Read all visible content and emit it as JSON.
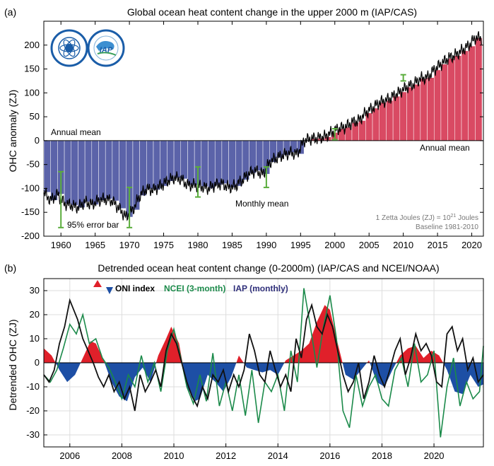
{
  "colors": {
    "blue_bar": "#5b63a9",
    "red_bar": "#d94a63",
    "error_bar": "#5aad3c",
    "oni_pos": "#e0202a",
    "oni_neg": "#1d4fa5",
    "ncei": "#1b8a4a",
    "iap": "#111111",
    "annual_blue_text": "#3a4a95",
    "annual_red_text": "#d03040",
    "iap_legend": "#2f2f7a"
  },
  "logos": [
    "cas-emblem",
    "iap-emblem"
  ],
  "chart_data": [
    {
      "panel_label": "(a)",
      "type": "bar",
      "title": "Global ocean heat content change in the upper 2000 m (IAP/CAS)",
      "ylabel": "OHC anomaly (ZJ)",
      "xlabel": "",
      "xlim": [
        1957.5,
        2021.7
      ],
      "ylim": [
        -200,
        250
      ],
      "x_ticks": [
        1960,
        1965,
        1970,
        1975,
        1980,
        1985,
        1990,
        1995,
        2000,
        2005,
        2010,
        2015,
        2020
      ],
      "y_ticks": [
        -200,
        -150,
        -100,
        -50,
        0,
        50,
        100,
        150,
        200
      ],
      "grid": false,
      "years": [
        1958,
        1959,
        1960,
        1961,
        1962,
        1963,
        1964,
        1965,
        1966,
        1967,
        1968,
        1969,
        1970,
        1971,
        1972,
        1973,
        1974,
        1975,
        1976,
        1977,
        1978,
        1979,
        1980,
        1981,
        1982,
        1983,
        1984,
        1985,
        1986,
        1987,
        1988,
        1989,
        1990,
        1991,
        1992,
        1993,
        1994,
        1995,
        1996,
        1997,
        1998,
        1999,
        2000,
        2001,
        2002,
        2003,
        2004,
        2005,
        2006,
        2007,
        2008,
        2009,
        2010,
        2011,
        2012,
        2013,
        2014,
        2015,
        2016,
        2017,
        2018,
        2019,
        2020,
        2021
      ],
      "annual_mean": [
        -108,
        -125,
        -112,
        -132,
        -135,
        -140,
        -128,
        -134,
        -125,
        -122,
        -126,
        -142,
        -160,
        -145,
        -115,
        -101,
        -103,
        -95,
        -85,
        -78,
        -80,
        -93,
        -93,
        -96,
        -100,
        -93,
        -90,
        -98,
        -95,
        -82,
        -68,
        -63,
        -70,
        -45,
        -36,
        -30,
        -25,
        -28,
        0,
        4,
        5,
        8,
        17,
        25,
        28,
        38,
        42,
        58,
        68,
        80,
        84,
        93,
        102,
        112,
        118,
        130,
        132,
        148,
        160,
        172,
        178,
        188,
        198,
        215
      ],
      "monthly_mean_label": "Monthly mean",
      "annual_mean_label_left": "Annual mean",
      "annual_mean_label_right": "Annual mean",
      "error_bar_label": "95% error bar",
      "error_bars": [
        {
          "x": 1960,
          "low": -182,
          "high": -65
        },
        {
          "x": 1970,
          "low": -182,
          "high": -98
        },
        {
          "x": 1980,
          "low": -118,
          "high": -55
        },
        {
          "x": 1990,
          "low": -98,
          "high": -55
        },
        {
          "x": 2000,
          "low": 2,
          "high": 25
        },
        {
          "x": 2010,
          "low": 125,
          "high": 138
        }
      ],
      "note_line1_prefix": "1 Zetta Joules (ZJ) = 10",
      "note_line1_sup": "21",
      "note_line1_suffix": " Joules",
      "note_line2": "Baseline 1981-2010"
    },
    {
      "panel_label": "(b)",
      "type": "line",
      "title": "Detrended ocean heat content change (0-2000m) (IAP/CAS and NCEI/NOAA)",
      "ylabel": "Detrended OHC (ZJ)",
      "xlabel": "",
      "xlim": [
        2005.0,
        2021.9
      ],
      "ylim": [
        -35,
        35
      ],
      "x_ticks": [
        2006,
        2008,
        2010,
        2012,
        2014,
        2016,
        2018,
        2020
      ],
      "y_ticks": [
        -30,
        -20,
        -10,
        0,
        10,
        20,
        30
      ],
      "grid": true,
      "legend": [
        "ONI index",
        "NCEI (3-month)",
        "IAP (monthly)"
      ],
      "legend_placement": "top-left",
      "oni": {
        "x": [
          2005.0,
          2005.3,
          2005.6,
          2005.9,
          2006.2,
          2006.5,
          2006.8,
          2007.0,
          2007.3,
          2007.6,
          2007.9,
          2008.2,
          2008.5,
          2008.8,
          2009.1,
          2009.4,
          2009.7,
          2009.9,
          2010.2,
          2010.5,
          2010.8,
          2011.0,
          2011.3,
          2011.6,
          2011.9,
          2012.2,
          2012.5,
          2012.8,
          2013.1,
          2013.4,
          2013.7,
          2014.0,
          2014.3,
          2014.6,
          2014.9,
          2015.2,
          2015.5,
          2015.8,
          2016.0,
          2016.3,
          2016.6,
          2016.9,
          2017.2,
          2017.5,
          2017.8,
          2018.1,
          2018.4,
          2018.7,
          2019.0,
          2019.3,
          2019.6,
          2019.9,
          2020.2,
          2020.5,
          2020.8,
          2021.1,
          2021.4,
          2021.7,
          2021.9
        ],
        "values": [
          6,
          3,
          -3,
          -8,
          -5,
          2,
          9,
          8,
          1,
          -8,
          -14,
          -16,
          -6,
          -2,
          -8,
          3,
          10,
          15,
          8,
          -10,
          -16,
          -15,
          -5,
          -8,
          -12,
          -6,
          3,
          -2,
          -3,
          -4,
          -3,
          -5,
          1,
          3,
          5,
          8,
          17,
          24,
          22,
          8,
          -5,
          -7,
          -3,
          1,
          -8,
          -10,
          -3,
          3,
          6,
          7,
          2,
          5,
          3,
          -3,
          -12,
          -13,
          -5,
          -10,
          -9
        ]
      },
      "series": [
        {
          "name": "NCEI (3-month)",
          "x": [
            2005.0,
            2005.25,
            2005.5,
            2005.75,
            2006.0,
            2006.25,
            2006.5,
            2006.75,
            2007.0,
            2007.25,
            2007.5,
            2007.75,
            2008.0,
            2008.25,
            2008.5,
            2008.75,
            2009.0,
            2009.25,
            2009.5,
            2009.75,
            2010.0,
            2010.25,
            2010.5,
            2010.75,
            2011.0,
            2011.25,
            2011.5,
            2011.75,
            2012.0,
            2012.25,
            2012.5,
            2012.75,
            2013.0,
            2013.25,
            2013.5,
            2013.75,
            2014.0,
            2014.25,
            2014.5,
            2014.75,
            2015.0,
            2015.25,
            2015.5,
            2015.75,
            2016.0,
            2016.25,
            2016.5,
            2016.75,
            2017.0,
            2017.25,
            2017.5,
            2017.75,
            2018.0,
            2018.25,
            2018.5,
            2018.75,
            2019.0,
            2019.25,
            2019.5,
            2019.75,
            2020.0,
            2020.25,
            2020.5,
            2020.75,
            2021.0,
            2021.25,
            2021.5,
            2021.75,
            2021.9
          ],
          "values": [
            -5,
            -8,
            -3,
            6,
            16,
            12,
            20,
            8,
            10,
            2,
            -2,
            -8,
            -15,
            -5,
            -10,
            3,
            -8,
            0,
            -12,
            5,
            14,
            3,
            -10,
            -17,
            -5,
            -16,
            4,
            -18,
            -8,
            -20,
            -5,
            -22,
            -3,
            -25,
            -8,
            -12,
            -5,
            -20,
            5,
            -8,
            31,
            15,
            -2,
            15,
            28,
            10,
            -20,
            -27,
            -5,
            -18,
            -10,
            -5,
            -15,
            -18,
            -3,
            2,
            -10,
            8,
            -8,
            -5,
            5,
            -31,
            -10,
            2,
            -18,
            -8,
            -15,
            -12,
            7
          ]
        },
        {
          "name": "IAP (monthly)",
          "x": [
            2005.0,
            2005.2,
            2005.4,
            2005.6,
            2005.8,
            2006.0,
            2006.15,
            2006.3,
            2006.5,
            2006.7,
            2006.9,
            2007.1,
            2007.3,
            2007.5,
            2007.7,
            2007.9,
            2008.1,
            2008.3,
            2008.5,
            2008.7,
            2008.9,
            2009.1,
            2009.3,
            2009.5,
            2009.7,
            2009.9,
            2010.1,
            2010.3,
            2010.5,
            2010.7,
            2010.9,
            2011.1,
            2011.3,
            2011.5,
            2011.7,
            2011.9,
            2012.1,
            2012.3,
            2012.5,
            2012.7,
            2012.9,
            2013.1,
            2013.3,
            2013.5,
            2013.7,
            2013.9,
            2014.1,
            2014.3,
            2014.5,
            2014.7,
            2014.9,
            2015.1,
            2015.3,
            2015.5,
            2015.7,
            2015.9,
            2016.1,
            2016.3,
            2016.5,
            2016.7,
            2016.9,
            2017.1,
            2017.3,
            2017.5,
            2017.7,
            2017.9,
            2018.1,
            2018.3,
            2018.5,
            2018.7,
            2018.9,
            2019.1,
            2019.3,
            2019.5,
            2019.7,
            2019.9,
            2020.1,
            2020.3,
            2020.5,
            2020.7,
            2020.9,
            2021.1,
            2021.3,
            2021.5,
            2021.7,
            2021.9
          ],
          "values": [
            -5,
            -8,
            -3,
            8,
            15,
            26,
            22,
            18,
            10,
            5,
            0,
            -6,
            -10,
            -5,
            -12,
            -8,
            -15,
            -10,
            -20,
            -5,
            -12,
            -8,
            -3,
            -10,
            5,
            12,
            8,
            0,
            -8,
            -14,
            -18,
            -10,
            -15,
            -5,
            -8,
            -3,
            -12,
            -5,
            -10,
            -3,
            12,
            5,
            -5,
            -8,
            5,
            -3,
            -10,
            -5,
            -12,
            10,
            2,
            18,
            24,
            15,
            12,
            20,
            15,
            5,
            -5,
            -12,
            -8,
            0,
            -15,
            -8,
            3,
            -5,
            -10,
            -3,
            5,
            10,
            -5,
            2,
            12,
            5,
            8,
            3,
            -8,
            -10,
            12,
            15,
            5,
            10,
            -3,
            2,
            -8,
            -5
          ]
        }
      ]
    }
  ]
}
